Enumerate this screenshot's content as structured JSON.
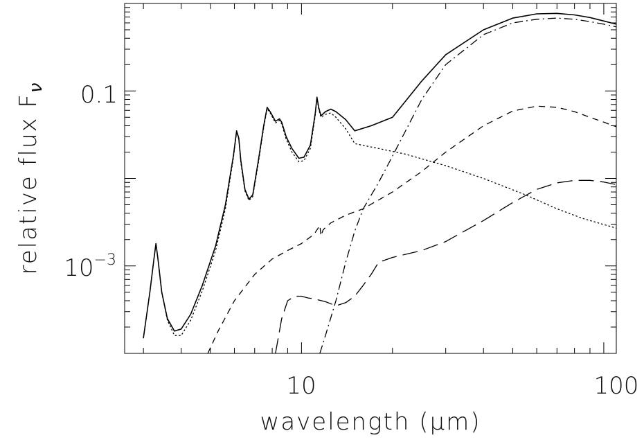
{
  "chart_data": {
    "type": "line",
    "title": "",
    "xlabel": "wavelength (μm)",
    "ylabel": "relative flux F",
    "ylabel_subscript": "ν",
    "x_scale": "log",
    "y_scale": "log",
    "xlim": [
      2.6,
      110
    ],
    "ylim": [
      0.0001,
      1
    ],
    "x_ticks": [
      {
        "value": 10,
        "label": "10"
      },
      {
        "value": 100,
        "label": "100"
      }
    ],
    "y_ticks": [
      {
        "value": 0.1,
        "label": "0.1",
        "sup": ""
      },
      {
        "value": 0.001,
        "label": "10",
        "sup": "−3"
      }
    ],
    "grid": false,
    "legend": "none",
    "colors": {
      "line": "#000000",
      "background": "#ffffff"
    },
    "series": [
      {
        "style": "solid",
        "x": [
          3.0,
          3.15,
          3.25,
          3.3,
          3.35,
          3.45,
          3.6,
          3.8,
          4.0,
          4.3,
          4.7,
          5.2,
          5.6,
          5.95,
          6.1,
          6.2,
          6.3,
          6.5,
          6.7,
          6.9,
          7.2,
          7.5,
          7.7,
          7.9,
          8.2,
          8.45,
          8.6,
          8.9,
          9.3,
          9.8,
          10.2,
          10.7,
          11.1,
          11.25,
          11.4,
          11.6,
          12.0,
          12.5,
          13.0,
          14.0,
          15.0,
          17.0,
          20.0,
          25.0,
          30.0,
          40.0,
          50.0,
          60.0,
          70.0,
          80.0,
          90.0,
          100.0,
          110.0
        ],
        "y": [
          0.00015,
          0.0005,
          0.0012,
          0.0018,
          0.0012,
          0.0005,
          0.00025,
          0.00018,
          0.00019,
          0.00028,
          0.0006,
          0.0017,
          0.005,
          0.018,
          0.035,
          0.029,
          0.016,
          0.0075,
          0.0058,
          0.0065,
          0.016,
          0.04,
          0.065,
          0.057,
          0.045,
          0.048,
          0.044,
          0.03,
          0.022,
          0.017,
          0.0175,
          0.024,
          0.055,
          0.085,
          0.065,
          0.052,
          0.058,
          0.062,
          0.058,
          0.047,
          0.035,
          0.04,
          0.05,
          0.13,
          0.26,
          0.5,
          0.68,
          0.76,
          0.77,
          0.74,
          0.69,
          0.63,
          0.58
        ]
      },
      {
        "style": "dotted",
        "x": [
          3.0,
          3.15,
          3.25,
          3.3,
          3.35,
          3.45,
          3.6,
          3.8,
          4.0,
          4.3,
          4.7,
          5.2,
          5.6,
          5.95,
          6.1,
          6.2,
          6.3,
          6.5,
          6.7,
          6.9,
          7.2,
          7.5,
          7.7,
          7.9,
          8.2,
          8.45,
          8.6,
          8.9,
          9.3,
          9.8,
          10.2,
          10.7,
          11.1,
          11.25,
          11.4,
          11.6,
          12.0,
          12.5,
          13.0,
          14.0,
          15.0,
          18.0,
          22.0,
          30.0,
          40.0,
          55.0,
          70.0,
          85.0,
          110.0
        ],
        "y": [
          0.00015,
          0.0005,
          0.0012,
          0.0018,
          0.0012,
          0.0005,
          0.00024,
          0.00016,
          0.00016,
          0.00024,
          0.00052,
          0.0015,
          0.0045,
          0.017,
          0.034,
          0.028,
          0.015,
          0.0072,
          0.0056,
          0.0062,
          0.015,
          0.038,
          0.063,
          0.055,
          0.043,
          0.046,
          0.042,
          0.028,
          0.02,
          0.0155,
          0.016,
          0.022,
          0.052,
          0.082,
          0.062,
          0.05,
          0.054,
          0.056,
          0.05,
          0.037,
          0.025,
          0.022,
          0.019,
          0.014,
          0.01,
          0.0065,
          0.0045,
          0.0035,
          0.0027
        ]
      },
      {
        "style": "dashed",
        "x": [
          4.9,
          5.3,
          6.0,
          7.0,
          8.0,
          9.0,
          10.0,
          11.0,
          11.5,
          11.6,
          11.8,
          12.5,
          14.0,
          16.0,
          20.0,
          25.0,
          30.0,
          40.0,
          50.0,
          60.0,
          70.0,
          80.0,
          90.0,
          100.0,
          110.0
        ],
        "y": [
          0.0001,
          0.00018,
          0.0004,
          0.0008,
          0.0012,
          0.0015,
          0.0018,
          0.0023,
          0.0029,
          0.0022,
          0.0026,
          0.0031,
          0.0038,
          0.0045,
          0.007,
          0.012,
          0.02,
          0.04,
          0.059,
          0.067,
          0.065,
          0.058,
          0.05,
          0.044,
          0.039
        ]
      },
      {
        "style": "long-dash",
        "x": [
          8.2,
          8.6,
          9.0,
          9.5,
          10.0,
          10.5,
          11.0,
          12.0,
          13.0,
          14.0,
          15.0,
          16.0,
          17.0,
          18.0,
          20.0,
          25.0,
          30.0,
          40.0,
          50.0,
          60.0,
          70.0,
          80.0,
          90.0,
          100.0,
          110.0
        ],
        "y": [
          0.0001,
          0.00025,
          0.0004,
          0.00045,
          0.00045,
          0.00043,
          0.00042,
          0.00039,
          0.00035,
          0.00038,
          0.00045,
          0.0006,
          0.0008,
          0.0011,
          0.00125,
          0.0015,
          0.0019,
          0.0033,
          0.0053,
          0.0075,
          0.0089,
          0.0095,
          0.0095,
          0.0091,
          0.0085
        ]
      },
      {
        "style": "dash-dot",
        "x": [
          11.5,
          12.0,
          13.0,
          14.0,
          15.0,
          16.0,
          18.0,
          20.0,
          25.0,
          30.0,
          40.0,
          50.0,
          60.0,
          70.0,
          80.0,
          90.0,
          100.0,
          110.0
        ],
        "y": [
          0.0001,
          0.00016,
          0.0004,
          0.0011,
          0.0025,
          0.0045,
          0.009,
          0.018,
          0.08,
          0.2,
          0.44,
          0.6,
          0.66,
          0.68,
          0.66,
          0.62,
          0.58,
          0.54
        ]
      }
    ]
  }
}
